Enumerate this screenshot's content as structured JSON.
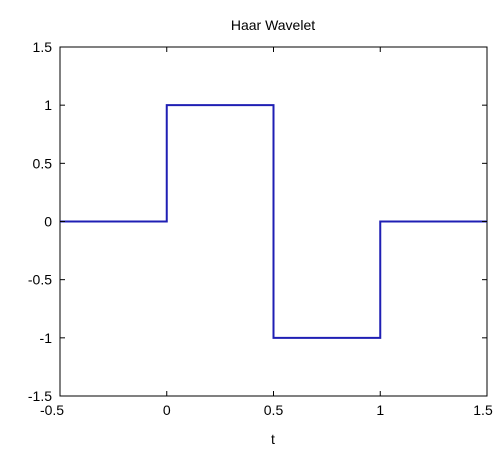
{
  "chart_data": {
    "type": "line",
    "title": "Haar Wavelet",
    "xlabel": "t",
    "ylabel": "",
    "xlim": [
      -0.5,
      1.5
    ],
    "ylim": [
      -1.5,
      1.5
    ],
    "grid": false,
    "x_ticks": [
      -0.5,
      0,
      0.5,
      1,
      1.5
    ],
    "x_tick_labels": [
      "-0.5",
      "0",
      "0.5",
      "1",
      "1.5"
    ],
    "y_ticks": [
      1.5,
      1,
      0.5,
      0,
      -0.5,
      -1,
      -1.5
    ],
    "y_tick_labels": [
      "1.5",
      "1",
      "0.5",
      "0",
      "-0.5",
      "-1",
      "-1.5"
    ],
    "series": [
      {
        "color": "#1f1fb4",
        "x": [
          -0.5,
          0,
          0,
          0.5,
          0.5,
          1,
          1,
          1.5
        ],
        "y": [
          0,
          0,
          1,
          1,
          -1,
          -1,
          0,
          0
        ]
      }
    ]
  }
}
